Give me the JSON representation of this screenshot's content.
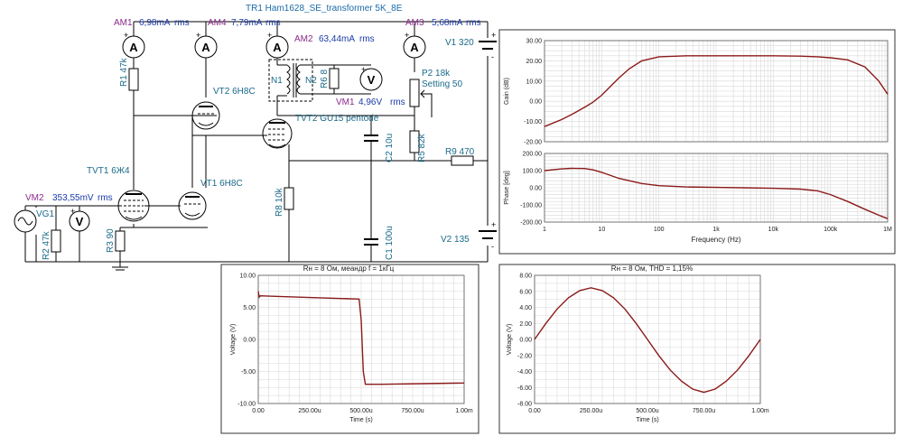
{
  "schematic": {
    "title": "TR1 Ham1628_SE_transformer 5K_8E",
    "meters": {
      "am1": {
        "name": "AM1",
        "reading": "6,98mA",
        "unit": "rms"
      },
      "am4": {
        "name": "AM4",
        "reading": "7,79mA",
        "unit": "rms"
      },
      "am2": {
        "name": "AM2",
        "reading": "63,44mA",
        "unit": "rms"
      },
      "am3": {
        "name": "AM3",
        "reading": "5,68mA",
        "unit": "rms"
      },
      "vm1": {
        "name": "VM1",
        "reading": "4,96V",
        "unit": "rms"
      },
      "vm2": {
        "name": "VM2",
        "reading": "353,55mV",
        "unit": "rms"
      }
    },
    "components": {
      "r1": "R1 47k",
      "r2": "R2 47k",
      "r3": "R3 90",
      "r5": "R5 82k",
      "r6": "R6 8",
      "r8": "R8 10k",
      "r9": "R9 470",
      "p2": "P2 18k",
      "p2_setting": "Setting 50",
      "c1": "C1 100u",
      "c2": "C2 10u",
      "vt1": "VT1 6H8C",
      "vt2": "VT2 6H8C",
      "tvt1": "TVT1 6Ж4",
      "tvt2": "TVT2 GU15 pentode",
      "vg1": "VG1",
      "v1": "V1 320",
      "v2": "V2 135",
      "n1": "N1",
      "n2": "N2",
      "meter_a": "A",
      "meter_v": "V",
      "plus": "+",
      "minus": "-"
    }
  },
  "chart_data": [
    {
      "id": "bode",
      "type": "line",
      "x_scale": "log",
      "xlabel": "Frequency (Hz)",
      "x_ticks": [
        "1",
        "10",
        "100",
        "1k",
        "10k",
        "100k",
        "1M"
      ],
      "x_tick_values": [
        1,
        10,
        100,
        1000,
        10000,
        100000,
        1000000
      ],
      "subplots": [
        {
          "ylabel": "Gain (dB)",
          "ylim": [
            -20,
            30
          ],
          "y_ticks": [
            "30.00",
            "20.00",
            "10.00",
            "0.00",
            "-10.00",
            "-20.00"
          ],
          "y_tick_values": [
            30,
            20,
            10,
            0,
            -10,
            -20
          ],
          "x": [
            1,
            2,
            3,
            5,
            7,
            10,
            15,
            20,
            30,
            50,
            100,
            300,
            1000,
            10000,
            30000,
            60000,
            100000,
            200000,
            400000,
            700000,
            1000000
          ],
          "y": [
            -12.5,
            -9,
            -6.5,
            -3,
            -0.5,
            3,
            8,
            11.5,
            16,
            20,
            22,
            22.5,
            22.5,
            22.5,
            22.3,
            22,
            21.5,
            20.5,
            17,
            10,
            3.5
          ],
          "color": "#8b1a1a"
        },
        {
          "ylabel": "Phase [deg]",
          "ylim": [
            -200,
            200
          ],
          "y_ticks": [
            "200.00",
            "100.00",
            "0.00",
            "-100.00",
            "-200.00"
          ],
          "y_tick_values": [
            200,
            100,
            0,
            -100,
            -200
          ],
          "x": [
            1,
            2,
            3,
            5,
            7,
            10,
            20,
            50,
            100,
            300,
            1000,
            3000,
            10000,
            30000,
            60000,
            100000,
            200000,
            400000,
            700000,
            1000000
          ],
          "y": [
            100,
            110,
            113,
            112,
            105,
            90,
            55,
            25,
            12,
            5,
            2,
            0,
            -3,
            -8,
            -18,
            -40,
            -80,
            -125,
            -160,
            -180
          ],
          "color": "#8b1a1a"
        }
      ]
    },
    {
      "id": "square",
      "type": "line",
      "title": "Rн = 8 Ом, меандр f = 1кГц",
      "xlabel": "Time (s)",
      "ylabel": "Voltage (V)",
      "xlim": [
        0,
        1
      ],
      "ylim": [
        -10,
        10
      ],
      "x_ticks": [
        "0.00",
        "250.00u",
        "500.00u",
        "750.00u",
        "1.00m"
      ],
      "x_tick_values": [
        0,
        0.25,
        0.5,
        0.75,
        1
      ],
      "y_ticks": [
        "10.00",
        "5.00",
        "0.00",
        "-5.00",
        "-10.00"
      ],
      "y_tick_values": [
        10,
        5,
        0,
        -5,
        -10
      ],
      "x": [
        0,
        0.005,
        0.01,
        0.1,
        0.3,
        0.49,
        0.5,
        0.51,
        0.52,
        0.6,
        0.8,
        1.0
      ],
      "y": [
        7.5,
        6.6,
        6.8,
        6.7,
        6.5,
        6.3,
        3.0,
        -5.0,
        -7.0,
        -7.0,
        -6.9,
        -6.8
      ],
      "color": "#8b1a1a"
    },
    {
      "id": "sine",
      "type": "line",
      "title": "Rн = 8 Ом, THD = 1,15%",
      "xlabel": "Time (s)",
      "ylabel": "Voltage (V)",
      "xlim": [
        0,
        1
      ],
      "ylim": [
        -8,
        8
      ],
      "x_ticks": [
        "0.00",
        "250.00u",
        "500.00u",
        "750.00u",
        "1.00m"
      ],
      "x_tick_values": [
        0,
        0.25,
        0.5,
        0.75,
        1
      ],
      "y_ticks": [
        "8.00",
        "6.00",
        "4.00",
        "2.00",
        "0.00",
        "-2.00",
        "-4.00",
        "-6.00",
        "-8.00"
      ],
      "y_tick_values": [
        8,
        6,
        4,
        2,
        0,
        -2,
        -4,
        -6,
        -8
      ],
      "x": [
        0,
        0.05,
        0.1,
        0.15,
        0.2,
        0.25,
        0.3,
        0.35,
        0.4,
        0.45,
        0.5,
        0.55,
        0.6,
        0.65,
        0.7,
        0.75,
        0.8,
        0.85,
        0.9,
        0.95,
        1.0
      ],
      "y": [
        0,
        2.0,
        3.8,
        5.2,
        6.1,
        6.45,
        6.1,
        5.2,
        3.8,
        2.0,
        0,
        -2.0,
        -3.8,
        -5.2,
        -6.2,
        -6.6,
        -6.2,
        -5.2,
        -3.8,
        -2.0,
        0
      ],
      "color": "#8b1a1a"
    }
  ]
}
